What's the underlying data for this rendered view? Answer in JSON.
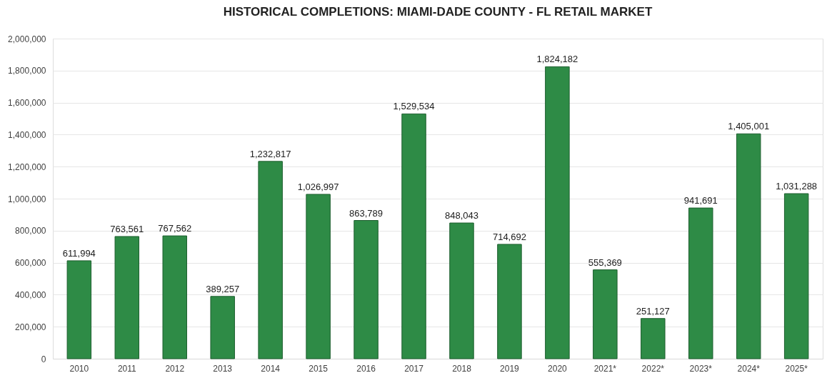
{
  "chart_data": {
    "type": "bar",
    "title": "HISTORICAL COMPLETIONS: MIAMI-DADE COUNTY - FL RETAIL MARKET",
    "categories": [
      "2010",
      "2011",
      "2012",
      "2013",
      "2014",
      "2015",
      "2016",
      "2017",
      "2018",
      "2019",
      "2020",
      "2021*",
      "2022*",
      "2023*",
      "2024*",
      "2025*"
    ],
    "values": [
      611994,
      763561,
      767562,
      389257,
      1232817,
      1026997,
      863789,
      1529534,
      848043,
      714692,
      1824182,
      555369,
      251127,
      941691,
      1405001,
      1031288
    ],
    "value_labels": [
      "611,994",
      "763,561",
      "767,562",
      "389,257",
      "1,232,817",
      "1,026,997",
      "863,789",
      "1,529,534",
      "848,043",
      "714,692",
      "1,824,182",
      "555,369",
      "251,127",
      "941,691",
      "1,405,001",
      "1,031,288"
    ],
    "color": "#2e8b46",
    "ylim": [
      0,
      2000000
    ],
    "yticks": [
      0,
      {
        "value": 200000,
        "label": "200,000"
      },
      {
        "value": 400000,
        "label": "400,000"
      },
      {
        "value": 600000,
        "label": "600,000"
      },
      {
        "value": 800000,
        "label": "800,000"
      },
      {
        "value": 1000000,
        "label": "1,000,000"
      },
      {
        "value": 1200000,
        "label": "1,200,000"
      },
      {
        "value": 1400000,
        "label": "1,400,000"
      },
      {
        "value": 1600000,
        "label": "1,600,000"
      },
      {
        "value": 1800000,
        "label": "1,800,000"
      },
      {
        "value": 2000000,
        "label": "2,000,000"
      }
    ],
    "grid": "y"
  }
}
